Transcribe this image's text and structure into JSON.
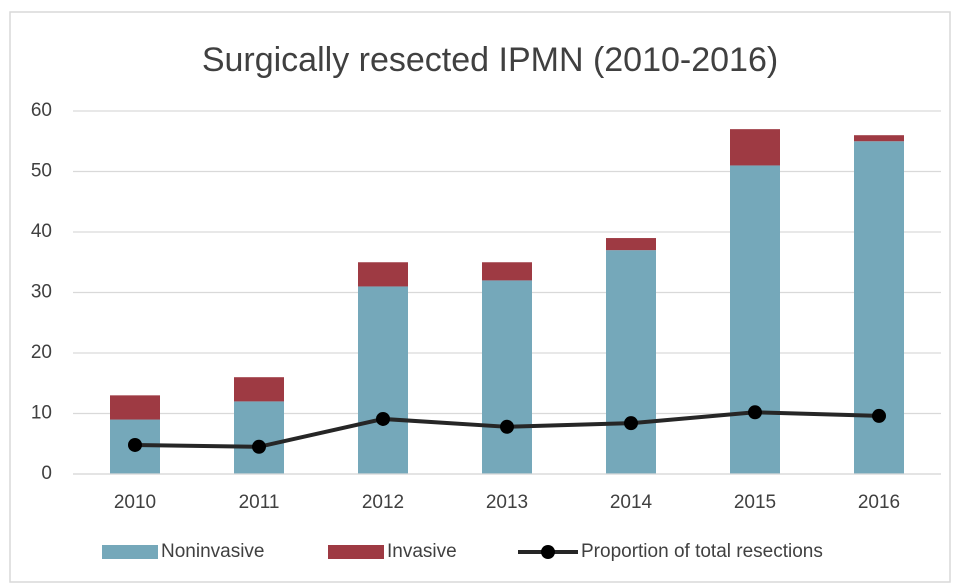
{
  "chart_data": {
    "type": "bar",
    "title": "Surgically resected IPMN (2010-2016)",
    "categories": [
      "2010",
      "2011",
      "2012",
      "2013",
      "2014",
      "2015",
      "2016"
    ],
    "series": [
      {
        "name": "Noninvasive",
        "color": "#75a8ba",
        "type": "bar",
        "values": [
          9,
          12,
          31,
          32,
          37,
          51,
          55
        ]
      },
      {
        "name": "Invasive",
        "color": "#9e3a43",
        "type": "bar",
        "values": [
          4,
          4,
          4,
          3,
          2,
          6,
          1
        ]
      },
      {
        "name": "Proportion of total resections",
        "color": "#262626",
        "type": "line",
        "values": [
          4.8,
          4.5,
          9.1,
          7.8,
          8.4,
          10.2,
          9.6
        ]
      }
    ],
    "stacked": true,
    "ylim": [
      0,
      60
    ],
    "yticks": [
      0,
      10,
      20,
      30,
      40,
      50,
      60
    ],
    "grid": true,
    "legend": "bottom"
  }
}
